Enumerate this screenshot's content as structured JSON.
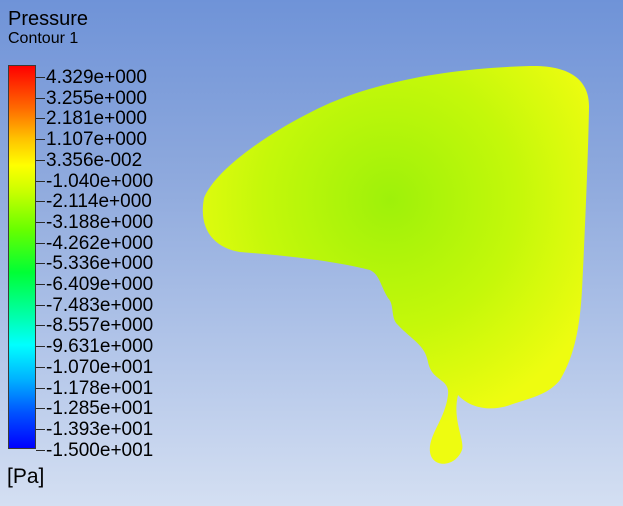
{
  "legend": {
    "title": "Pressure",
    "subtitle": "Contour 1",
    "units": "[Pa]",
    "labels": [
      "4.329e+000",
      "3.255e+000",
      "2.181e+000",
      "1.107e+000",
      "3.356e-002",
      "-1.040e+000",
      "-2.114e+000",
      "-3.188e+000",
      "-4.262e+000",
      "-5.336e+000",
      "-6.409e+000",
      "-7.483e+000",
      "-8.557e+000",
      "-9.631e+000",
      "-1.070e+001",
      "-1.178e+001",
      "-1.285e+001",
      "-1.393e+001",
      "-1.500e+001"
    ]
  },
  "colors": {
    "shape_center": "#9ef10a",
    "shape_mid": "#c4f80a",
    "shape_edge": "#eefc10"
  }
}
